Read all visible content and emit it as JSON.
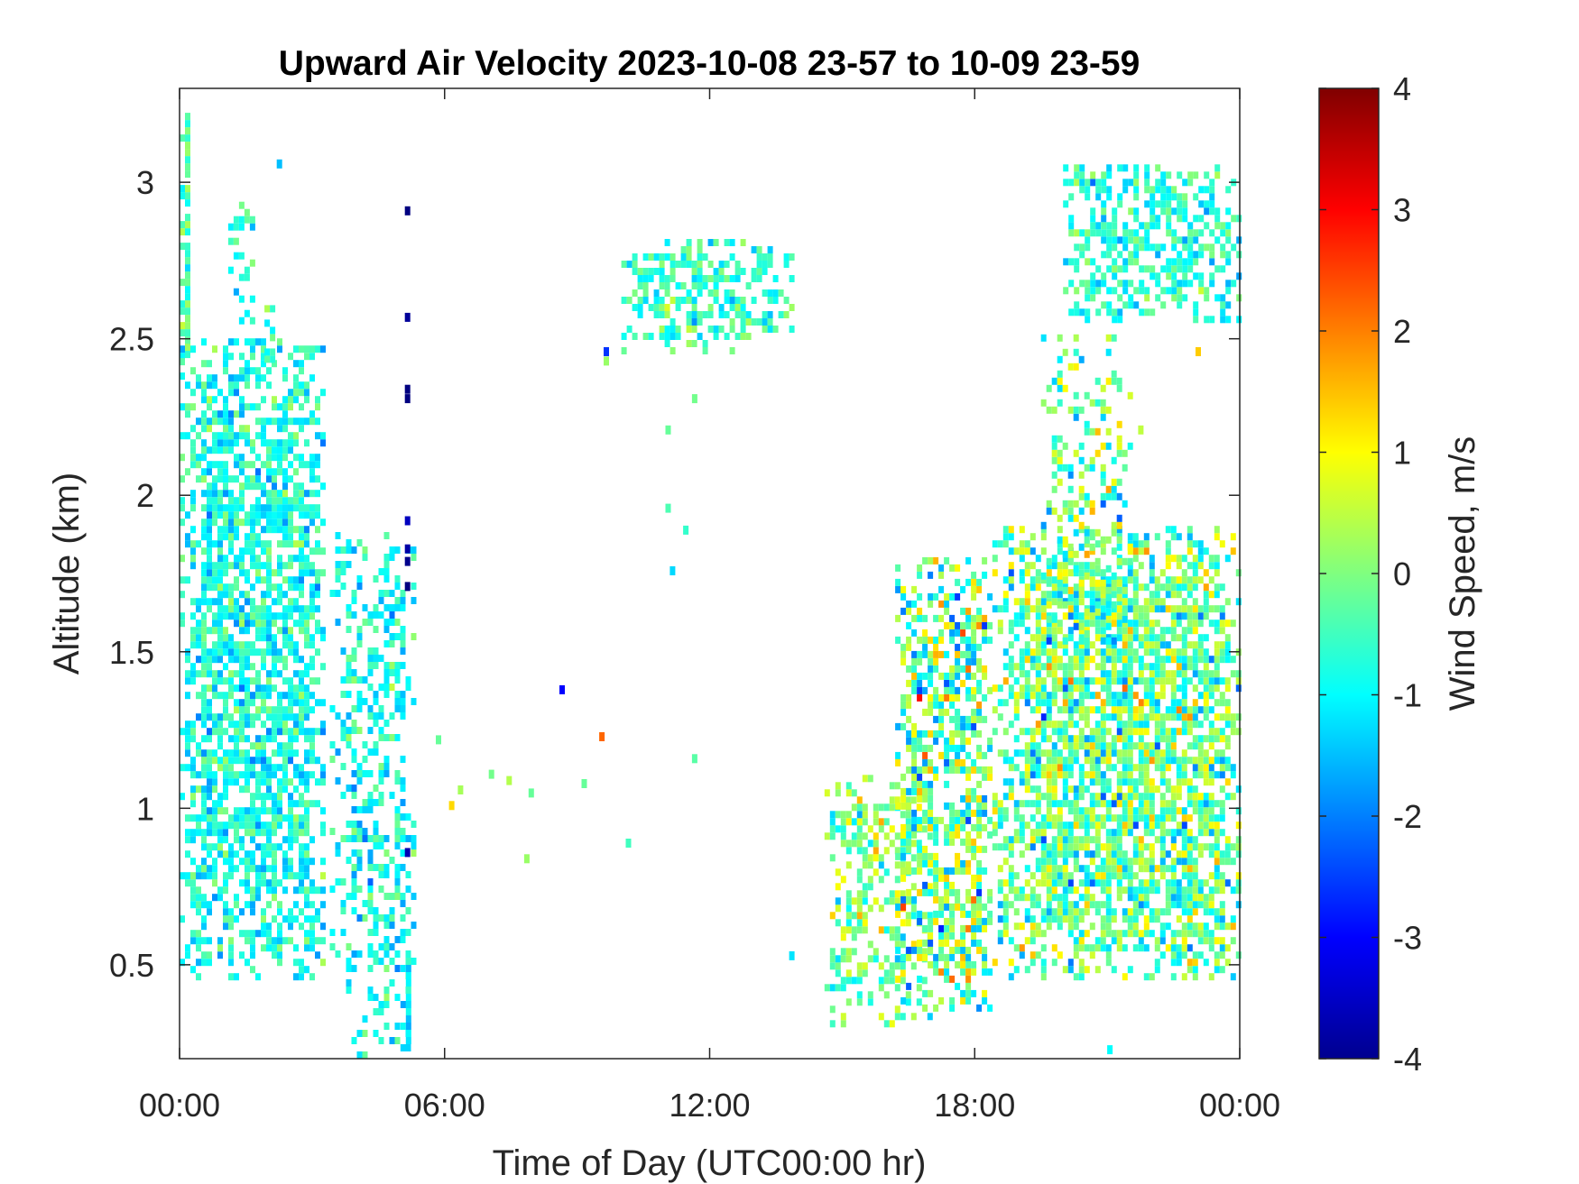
{
  "chart_data": {
    "type": "heatmap",
    "title": "Upward Air Velocity 2023-10-08 23-57 to 10-09 23-59",
    "xlabel": "Time of Day (UTC00:00 hr)",
    "ylabel": "Altitude (km)",
    "xlim": [
      0,
      24
    ],
    "ylim": [
      0.2,
      3.3
    ],
    "x_ticks": [
      0,
      6,
      12,
      18,
      24
    ],
    "x_tick_labels": [
      "00:00",
      "06:00",
      "12:00",
      "18:00",
      "00:00"
    ],
    "y_ticks": [
      0.5,
      1,
      1.5,
      2,
      2.5,
      3
    ],
    "y_tick_labels": [
      "0.5",
      "1",
      "1.5",
      "2",
      "2.5",
      "3"
    ],
    "colorbar": {
      "label": "Wind Speed, m/s",
      "range": [
        -4,
        4
      ],
      "ticks": [
        -4,
        -3,
        -2,
        -1,
        0,
        1,
        2,
        3,
        4
      ],
      "tick_labels": [
        "-4",
        "-3",
        "-2",
        "-1",
        "0",
        "1",
        "2",
        "3",
        "4"
      ],
      "colormap": "jet"
    },
    "regions": [
      {
        "x": [
          0.0,
          3.3
        ],
        "y": [
          0.45,
          2.5
        ],
        "mean": -0.8,
        "spread": 0.7,
        "density": 0.7
      },
      {
        "x": [
          0.0,
          0.15
        ],
        "y": [
          2.3,
          3.25
        ],
        "mean": -0.3,
        "spread": 0.6,
        "density": 0.8
      },
      {
        "x": [
          1.1,
          1.6
        ],
        "y": [
          2.5,
          2.95
        ],
        "mean": -0.5,
        "spread": 0.7,
        "density": 0.4
      },
      {
        "x": [
          1.8,
          2.1
        ],
        "y": [
          2.4,
          2.65
        ],
        "mean": -0.5,
        "spread": 0.7,
        "density": 0.3
      },
      {
        "x": [
          3.4,
          5.3
        ],
        "y": [
          0.2,
          1.9
        ],
        "mean": -0.9,
        "spread": 0.7,
        "density": 0.4
      },
      {
        "x": [
          5.0,
          5.2
        ],
        "y": [
          0.2,
          0.5
        ],
        "mean": -1.2,
        "spread": 0.5,
        "density": 0.8
      },
      {
        "x": [
          10.0,
          13.9
        ],
        "y": [
          2.45,
          2.8
        ],
        "mean": -0.5,
        "spread": 0.7,
        "density": 0.5
      },
      {
        "x": [
          14.6,
          17.0
        ],
        "y": [
          0.3,
          1.1
        ],
        "mean": 0.0,
        "spread": 1.0,
        "density": 0.5
      },
      {
        "x": [
          16.2,
          18.4
        ],
        "y": [
          0.35,
          1.8
        ],
        "mean": -0.2,
        "spread": 1.5,
        "density": 0.6
      },
      {
        "x": [
          18.4,
          24.0
        ],
        "y": [
          0.45,
          1.9
        ],
        "mean": -0.2,
        "spread": 1.2,
        "density": 0.75
      },
      {
        "x": [
          19.5,
          21.5
        ],
        "y": [
          1.5,
          2.5
        ],
        "mean": -0.2,
        "spread": 1.2,
        "density": 0.3
      },
      {
        "x": [
          20.0,
          24.0
        ],
        "y": [
          2.55,
          3.05
        ],
        "mean": -0.7,
        "spread": 0.7,
        "density": 0.55
      }
    ],
    "isolated_points": [
      {
        "x": 2.2,
        "y": 3.05,
        "v": -1.5
      },
      {
        "x": 5.1,
        "y": 2.9,
        "v": -4
      },
      {
        "x": 5.1,
        "y": 2.56,
        "v": -3.8
      },
      {
        "x": 5.1,
        "y": 2.33,
        "v": -4
      },
      {
        "x": 5.1,
        "y": 2.3,
        "v": -4
      },
      {
        "x": 5.1,
        "y": 1.91,
        "v": -3.5
      },
      {
        "x": 5.1,
        "y": 1.82,
        "v": -3.7
      },
      {
        "x": 5.1,
        "y": 1.78,
        "v": -3.9
      },
      {
        "x": 5.1,
        "y": 1.7,
        "v": -4
      },
      {
        "x": 5.1,
        "y": 0.85,
        "v": -3.6
      },
      {
        "x": 8.6,
        "y": 1.37,
        "v": -3.0
      },
      {
        "x": 9.5,
        "y": 1.22,
        "v": 2.2
      },
      {
        "x": 9.6,
        "y": 2.42,
        "v": 0.2
      },
      {
        "x": 9.6,
        "y": 2.45,
        "v": -2.6
      },
      {
        "x": 11.0,
        "y": 2.2,
        "v": -0.2
      },
      {
        "x": 11.0,
        "y": 1.95,
        "v": -0.4
      },
      {
        "x": 11.1,
        "y": 1.75,
        "v": -1.3
      },
      {
        "x": 11.4,
        "y": 1.88,
        "v": -0.6
      },
      {
        "x": 11.6,
        "y": 2.3,
        "v": -0.1
      },
      {
        "x": 11.6,
        "y": 1.15,
        "v": -0.3
      },
      {
        "x": 10.1,
        "y": 0.88,
        "v": -0.5
      },
      {
        "x": 6.3,
        "y": 1.05,
        "v": 0.3
      },
      {
        "x": 6.1,
        "y": 1.0,
        "v": 1.3
      },
      {
        "x": 7.0,
        "y": 1.1,
        "v": -0.1
      },
      {
        "x": 7.4,
        "y": 1.08,
        "v": 0.4
      },
      {
        "x": 7.9,
        "y": 1.04,
        "v": -0.2
      },
      {
        "x": 7.8,
        "y": 0.83,
        "v": 0.2
      },
      {
        "x": 9.1,
        "y": 1.07,
        "v": -0.2
      },
      {
        "x": 5.8,
        "y": 1.21,
        "v": -0.2
      },
      {
        "x": 13.8,
        "y": 0.52,
        "v": -1.2
      },
      {
        "x": 23.0,
        "y": 2.45,
        "v": 1.4
      },
      {
        "x": 21.7,
        "y": 2.2,
        "v": 0.5
      },
      {
        "x": 21.0,
        "y": 0.22,
        "v": -1.0
      }
    ]
  }
}
